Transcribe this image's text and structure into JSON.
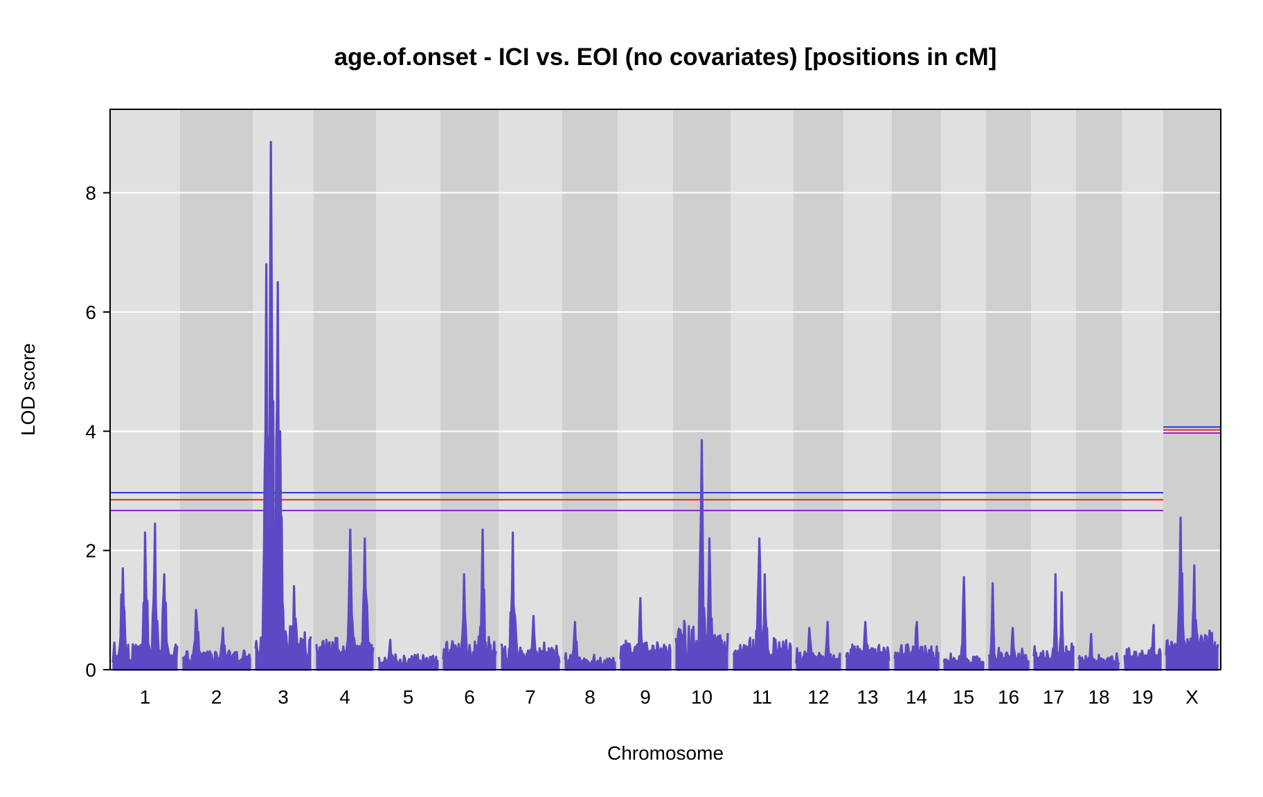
{
  "chart_data": {
    "type": "line",
    "title": "age.of.onset - ICI vs. EOI (no covariates) [positions in cM]",
    "xlabel": "Chromosome",
    "ylabel": "LOD score",
    "ylim": [
      0,
      9.4
    ],
    "yticks": [
      0,
      2,
      4,
      6,
      8
    ],
    "grid": true,
    "chromosomes": [
      "1",
      "2",
      "3",
      "4",
      "5",
      "6",
      "7",
      "8",
      "9",
      "10",
      "11",
      "12",
      "13",
      "14",
      "15",
      "16",
      "17",
      "18",
      "19",
      "X"
    ],
    "series": [
      {
        "color": "#5b4ac4",
        "peaks": [
          {
            "chr": "1",
            "background": 0.5,
            "peaks": [
              [
                0.15,
                1.7
              ],
              [
                0.5,
                2.3
              ],
              [
                0.65,
                2.45
              ],
              [
                0.8,
                1.6
              ]
            ]
          },
          {
            "chr": "2",
            "background": 0.4,
            "peaks": [
              [
                0.2,
                1.0
              ],
              [
                0.6,
                0.7
              ]
            ]
          },
          {
            "chr": "3",
            "background": 0.8,
            "peaks": [
              [
                0.2,
                6.8
              ],
              [
                0.28,
                8.85
              ],
              [
                0.4,
                6.5
              ],
              [
                0.45,
                4.0
              ],
              [
                0.7,
                1.4
              ]
            ]
          },
          {
            "chr": "4",
            "background": 0.6,
            "peaks": [
              [
                0.6,
                2.35
              ],
              [
                0.85,
                2.2
              ]
            ]
          },
          {
            "chr": "5",
            "background": 0.3,
            "peaks": [
              [
                0.2,
                0.5
              ]
            ]
          },
          {
            "chr": "6",
            "background": 0.6,
            "peaks": [
              [
                0.4,
                1.6
              ],
              [
                0.75,
                2.35
              ]
            ]
          },
          {
            "chr": "7",
            "background": 0.5,
            "peaks": [
              [
                0.2,
                2.3
              ],
              [
                0.55,
                0.9
              ]
            ]
          },
          {
            "chr": "8",
            "background": 0.3,
            "peaks": [
              [
                0.2,
                0.8
              ]
            ]
          },
          {
            "chr": "9",
            "background": 0.6,
            "peaks": [
              [
                0.4,
                1.2
              ]
            ]
          },
          {
            "chr": "10",
            "background": 0.9,
            "peaks": [
              [
                0.5,
                3.85
              ],
              [
                0.65,
                2.2
              ]
            ]
          },
          {
            "chr": "11",
            "background": 0.6,
            "peaks": [
              [
                0.45,
                2.2
              ],
              [
                0.55,
                1.6
              ]
            ]
          },
          {
            "chr": "12",
            "background": 0.4,
            "peaks": [
              [
                0.3,
                0.7
              ],
              [
                0.7,
                0.8
              ]
            ]
          },
          {
            "chr": "13",
            "background": 0.5,
            "peaks": [
              [
                0.45,
                0.8
              ]
            ]
          },
          {
            "chr": "14",
            "background": 0.5,
            "peaks": [
              [
                0.5,
                0.8
              ]
            ]
          },
          {
            "chr": "15",
            "background": 0.3,
            "peaks": [
              [
                0.5,
                1.55
              ]
            ]
          },
          {
            "chr": "16",
            "background": 0.4,
            "peaks": [
              [
                0.1,
                1.45
              ],
              [
                0.6,
                0.7
              ]
            ]
          },
          {
            "chr": "17",
            "background": 0.5,
            "peaks": [
              [
                0.55,
                1.6
              ],
              [
                0.7,
                1.3
              ]
            ]
          },
          {
            "chr": "18",
            "background": 0.3,
            "peaks": [
              [
                0.3,
                0.6
              ]
            ]
          },
          {
            "chr": "19",
            "background": 0.4,
            "peaks": [
              [
                0.8,
                0.75
              ]
            ]
          },
          {
            "chr": "X",
            "background": 0.7,
            "peaks": [
              [
                0.28,
                2.55
              ],
              [
                0.55,
                1.75
              ]
            ]
          }
        ]
      }
    ],
    "thresholds": {
      "autosomes": [
        {
          "value": 2.97,
          "color": "#1c3bd8"
        },
        {
          "value": 2.85,
          "color": "#d42a2a"
        },
        {
          "value": 2.67,
          "color": "#8a1fd0"
        }
      ],
      "x": [
        {
          "value": 4.07,
          "color": "#1c3bd8"
        },
        {
          "value": 4.02,
          "color": "#d42a2a"
        },
        {
          "value": 3.97,
          "color": "#8a1fd0"
        }
      ]
    },
    "colors": {
      "band_light": "#e0e0e0",
      "band_dark": "#cfcfcf",
      "grid": "#ffffff"
    }
  }
}
